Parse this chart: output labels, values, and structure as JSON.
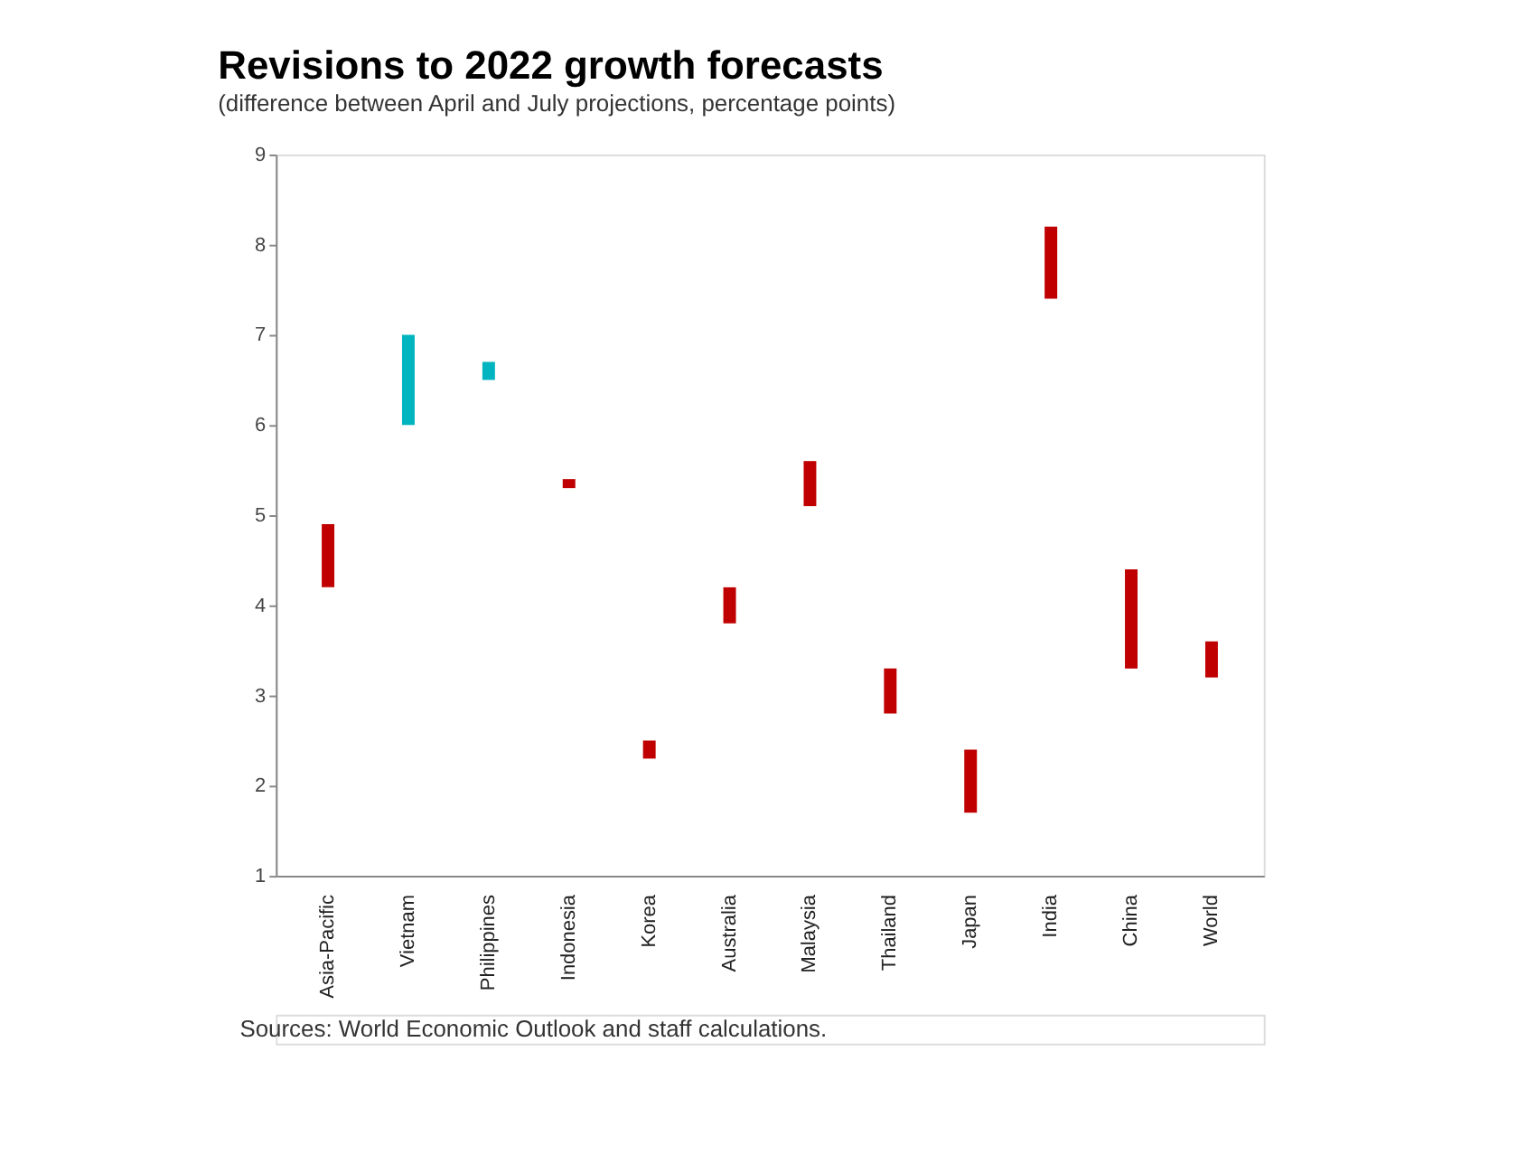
{
  "chart_data": {
    "type": "bar",
    "title": "Revisions to 2022 growth forecasts",
    "subtitle": "(difference between April and July projections, percentage points)",
    "categories": [
      "Asia-Pacific",
      "Vietnam",
      "Philippines",
      "Indonesia",
      "Korea",
      "Australia",
      "Malaysia",
      "Thailand",
      "Japan",
      "India",
      "China",
      "World"
    ],
    "base": [
      4.9,
      6.0,
      6.5,
      5.4,
      2.5,
      4.2,
      5.6,
      3.3,
      2.4,
      8.2,
      4.4,
      3.6
    ],
    "values": [
      -0.7,
      1.0,
      0.2,
      -0.1,
      -0.2,
      -0.4,
      -0.5,
      -0.5,
      -0.7,
      -0.8,
      -1.1,
      -0.4
    ],
    "colors": [
      "#c00000",
      "#00b5c0",
      "#00b5c0",
      "#c00000",
      "#c00000",
      "#c00000",
      "#c00000",
      "#c00000",
      "#c00000",
      "#c00000",
      "#c00000",
      "#c00000"
    ],
    "ylim": [
      1,
      9
    ],
    "yticks": [
      1,
      2,
      3,
      4,
      5,
      6,
      7,
      8,
      9
    ],
    "grid": false,
    "annotations": [
      "Sources: World Economic Outlook and staff calculations."
    ]
  }
}
